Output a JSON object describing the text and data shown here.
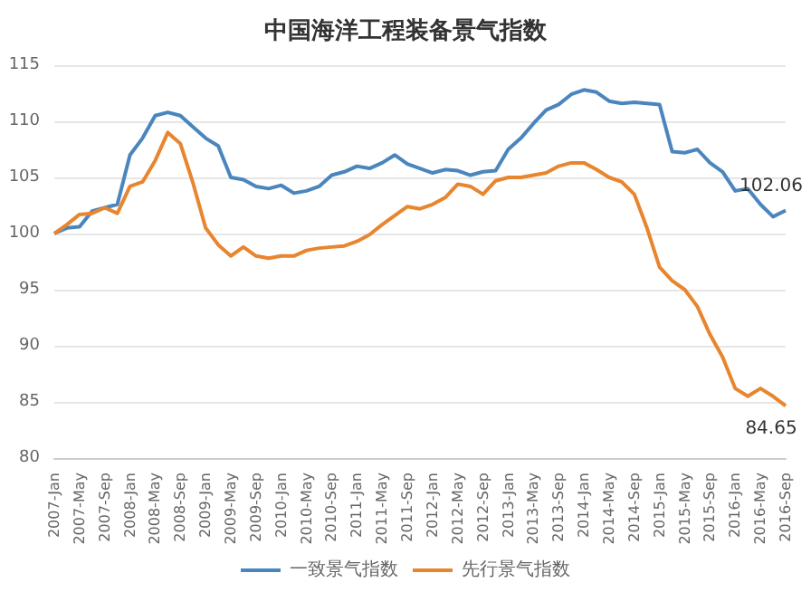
{
  "chart_data": {
    "type": "line",
    "title": "中国海洋工程装备景气指数",
    "categories": [
      "2007-Jan",
      null,
      "2007-May",
      null,
      "2007-Sep",
      null,
      "2008-Jan",
      null,
      "2008-May",
      null,
      "2008-Sep",
      null,
      "2009-Jan",
      null,
      "2009-May",
      null,
      "2009-Sep",
      null,
      "2010-Jan",
      null,
      "2010-May",
      null,
      "2010-Sep",
      null,
      "2011-Jan",
      null,
      "2011-May",
      null,
      "2011-Sep",
      null,
      "2012-Jan",
      null,
      "2012-May",
      null,
      "2012-Sep",
      null,
      "2013-Jan",
      null,
      "2013-May",
      null,
      "2013-Sep",
      null,
      "2014-Jan",
      null,
      "2014-May",
      null,
      "2014-Sep",
      null,
      "2015-Jan",
      null,
      "2015-May",
      null,
      "2015-Sep",
      null,
      "2016-Jan",
      null,
      "2016-May",
      null,
      "2016-Sep"
    ],
    "series": [
      {
        "name": "一致景气指数",
        "color": "#4a86bd",
        "values": [
          100,
          100.5,
          100.6,
          102,
          102.3,
          102.6,
          107,
          108.5,
          110.5,
          110.8,
          110.5,
          109.5,
          108.5,
          107.8,
          105,
          104.8,
          104.2,
          104,
          104.3,
          103.6,
          103.8,
          104.2,
          105.2,
          105.5,
          106,
          105.8,
          106.3,
          107,
          106.2,
          105.8,
          105.4,
          105.7,
          105.6,
          105.2,
          105.5,
          105.6,
          107.5,
          108.5,
          109.8,
          111,
          111.5,
          112.4,
          112.8,
          112.6,
          111.8,
          111.6,
          111.7,
          111.6,
          111.5,
          107.3,
          107.2,
          107.5,
          106.3,
          105.5,
          103.8,
          104,
          102.6,
          101.5,
          102.06
        ]
      },
      {
        "name": "先行景气指数",
        "color": "#e8852f",
        "values": [
          100,
          100.8,
          101.7,
          101.8,
          102.3,
          101.8,
          104.2,
          104.6,
          106.5,
          109,
          108,
          104.5,
          100.5,
          99,
          98,
          98.8,
          98,
          97.8,
          98,
          98,
          98.5,
          98.7,
          98.8,
          98.9,
          99.3,
          99.9,
          100.8,
          101.6,
          102.4,
          102.2,
          102.6,
          103.2,
          104.4,
          104.2,
          103.5,
          104.7,
          105,
          105,
          105.2,
          105.4,
          106,
          106.3,
          106.3,
          105.7,
          105,
          104.6,
          103.5,
          100.5,
          97,
          95.8,
          95,
          93.5,
          91,
          89,
          86.2,
          85.5,
          86.2,
          85.5,
          84.65
        ]
      }
    ],
    "annotations": [
      {
        "text": "102.06",
        "x": "2016-Sep",
        "y": 102.06
      },
      {
        "text": "84.65",
        "x": "2016-Sep",
        "y": 84.65
      }
    ],
    "ylim": [
      80,
      115
    ],
    "yticks": [
      80,
      85,
      90,
      95,
      100,
      105,
      110,
      115
    ],
    "grid": "y",
    "legend": "bottom",
    "marker": "none",
    "line_style": "solid"
  }
}
